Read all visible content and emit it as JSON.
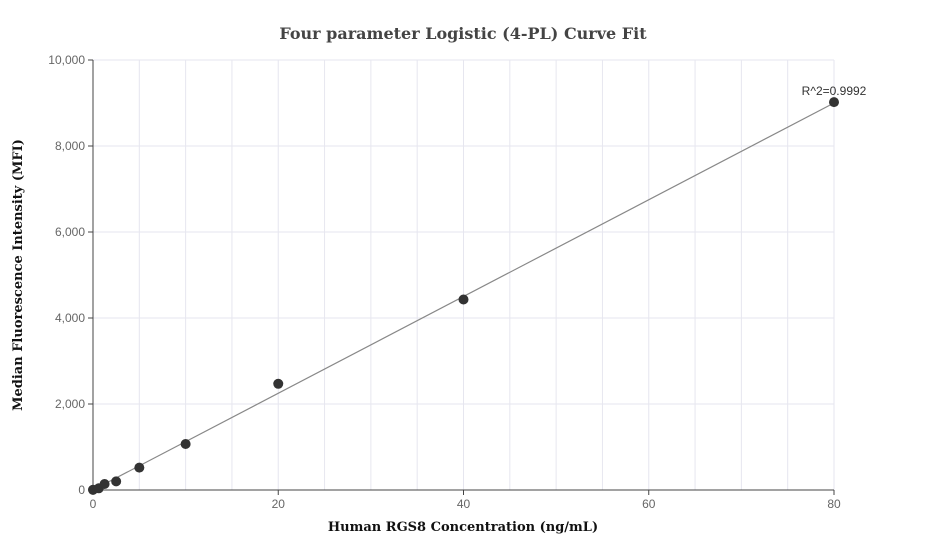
{
  "chart_data": {
    "type": "scatter",
    "title": "Four parameter Logistic (4-PL) Curve Fit",
    "xlabel": "Human RGS8 Concentration (ng/mL)",
    "ylabel": "Median Fluorescence Intensity (MFI)",
    "xlim": [
      0,
      80
    ],
    "ylim": [
      0,
      10000
    ],
    "xticks": [
      0,
      20,
      40,
      60,
      80
    ],
    "yticks": [
      0,
      2000,
      4000,
      6000,
      8000,
      10000
    ],
    "xtick_labels": [
      "0",
      "20",
      "40",
      "60",
      "80"
    ],
    "ytick_labels": [
      "0",
      "2,000",
      "4,000",
      "6,000",
      "8,000",
      "10,000"
    ],
    "grid": true,
    "series": [
      {
        "points": [
          {
            "x": 0,
            "y": 5
          },
          {
            "x": 0.625,
            "y": 40
          },
          {
            "x": 1.25,
            "y": 140
          },
          {
            "x": 2.5,
            "y": 200
          },
          {
            "x": 5,
            "y": 520
          },
          {
            "x": 10,
            "y": 1070
          },
          {
            "x": 20,
            "y": 2470
          },
          {
            "x": 40,
            "y": 4430
          },
          {
            "x": 80,
            "y": 9020
          }
        ]
      }
    ],
    "fit_line": {
      "x": [
        0,
        80
      ],
      "y": [
        0,
        9000
      ]
    },
    "annotation": "R^2=0.9992",
    "colors": {
      "points": "#333333",
      "fit_line": "#888888",
      "grid": "#e6e6ef"
    }
  }
}
